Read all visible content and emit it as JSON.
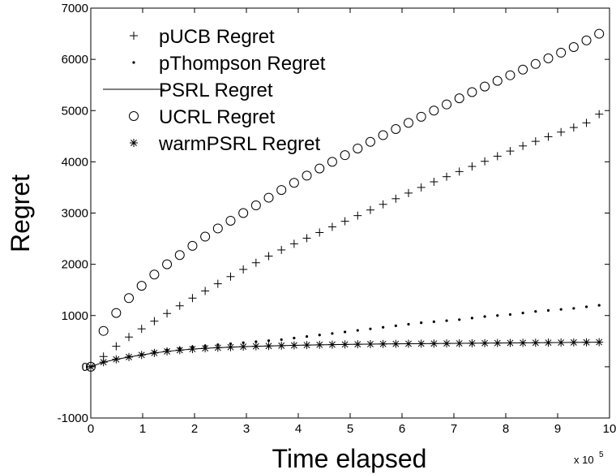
{
  "chart_data": {
    "type": "scatter",
    "title": "",
    "xlabel": "Time elapsed",
    "ylabel": "Regret",
    "x_exponent_label": "x 10",
    "x_exponent": "5",
    "xlim": [
      0,
      10
    ],
    "ylim": [
      -1000,
      7000
    ],
    "xticks": [
      0,
      1,
      2,
      3,
      4,
      5,
      6,
      7,
      8,
      9,
      10
    ],
    "yticks": [
      -1000,
      0,
      1000,
      2000,
      3000,
      4000,
      5000,
      6000,
      7000
    ],
    "ytick_labels": [
      "-1000",
      "0",
      "1000",
      "2000",
      "3000",
      "4000",
      "5000",
      "6000",
      "7000"
    ],
    "grid": false,
    "legend_position": "top-left",
    "x": [
      0,
      0.245,
      0.49,
      0.735,
      0.98,
      1.225,
      1.47,
      1.715,
      1.96,
      2.205,
      2.45,
      2.695,
      2.94,
      3.185,
      3.43,
      3.675,
      3.92,
      4.165,
      4.41,
      4.655,
      4.9,
      5.145,
      5.39,
      5.635,
      5.88,
      6.125,
      6.37,
      6.615,
      6.86,
      7.105,
      7.35,
      7.595,
      7.84,
      8.085,
      8.33,
      8.575,
      8.82,
      9.065,
      9.31,
      9.555,
      9.8
    ],
    "series": [
      {
        "name": "pUCB Regret",
        "marker": "plus",
        "values": [
          0,
          200,
          400,
          580,
          740,
          890,
          1040,
          1190,
          1340,
          1480,
          1620,
          1760,
          1900,
          2030,
          2160,
          2280,
          2400,
          2510,
          2620,
          2730,
          2840,
          2950,
          3060,
          3170,
          3280,
          3390,
          3500,
          3610,
          3710,
          3810,
          3910,
          4010,
          4110,
          4210,
          4310,
          4400,
          4490,
          4580,
          4670,
          4760,
          4930
        ]
      },
      {
        "name": "pThompson Regret",
        "marker": "dot",
        "values": [
          0,
          90,
          150,
          200,
          240,
          290,
          330,
          360,
          390,
          410,
          430,
          450,
          470,
          490,
          510,
          530,
          560,
          590,
          620,
          650,
          680,
          710,
          740,
          770,
          800,
          830,
          860,
          880,
          900,
          920,
          950,
          980,
          1000,
          1020,
          1050,
          1080,
          1100,
          1120,
          1140,
          1170,
          1200
        ]
      },
      {
        "name": "PSRL Regret",
        "marker": "line",
        "values": [
          0,
          90,
          145,
          190,
          230,
          270,
          300,
          325,
          345,
          360,
          372,
          383,
          392,
          400,
          406,
          412,
          418,
          423,
          428,
          432,
          436,
          439,
          442,
          445,
          447,
          449,
          451,
          453,
          455,
          457,
          459,
          461,
          463,
          465,
          467,
          469,
          471,
          473,
          475,
          477,
          480
        ]
      },
      {
        "name": "UCRL Regret",
        "marker": "circle",
        "values": [
          0,
          700,
          1050,
          1340,
          1580,
          1800,
          2000,
          2180,
          2360,
          2540,
          2700,
          2850,
          3000,
          3150,
          3300,
          3450,
          3590,
          3730,
          3870,
          4000,
          4130,
          4260,
          4390,
          4520,
          4640,
          4760,
          4880,
          5000,
          5120,
          5240,
          5360,
          5470,
          5580,
          5690,
          5800,
          5910,
          6020,
          6130,
          6240,
          6370,
          6500
        ]
      },
      {
        "name": "warmPSRL Regret",
        "marker": "star",
        "values": [
          0,
          90,
          145,
          190,
          230,
          270,
          300,
          325,
          345,
          360,
          372,
          383,
          392,
          400,
          406,
          412,
          418,
          423,
          428,
          432,
          436,
          439,
          442,
          445,
          447,
          449,
          451,
          453,
          455,
          457,
          459,
          461,
          463,
          465,
          467,
          469,
          471,
          473,
          475,
          477,
          480
        ]
      }
    ]
  }
}
